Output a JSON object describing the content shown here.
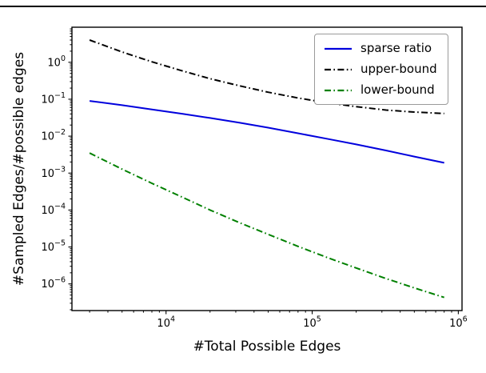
{
  "chart_data": {
    "type": "line",
    "title": "",
    "xlabel": "#Total Possible Edges",
    "ylabel": "#Sampled Edges/#possible edges",
    "x_scale": "log",
    "y_scale": "log",
    "grid": false,
    "legend_position": "upper right",
    "xlim": [
      2270,
      1060000
    ],
    "ylim": [
      1.9e-07,
      8.9
    ],
    "x_tick_exponents": [
      4,
      5,
      6
    ],
    "y_tick_exponents": [
      0,
      -1,
      -2,
      -3,
      -4,
      -5,
      -6
    ],
    "x": [
      3000,
      5000,
      8000,
      13000,
      20000,
      32000,
      50000,
      80000,
      130000,
      200000,
      320000,
      500000,
      800000
    ],
    "series": [
      {
        "name": "sparse ratio",
        "color": "#0000dd",
        "line_style": "solid",
        "values": [
          0.09,
          0.069,
          0.053,
          0.04,
          0.031,
          0.023,
          0.017,
          0.012,
          0.0083,
          0.006,
          0.0041,
          0.0028,
          0.0019
        ]
      },
      {
        "name": "upper-bound",
        "color": "#000000",
        "line_style": "dashdot",
        "values": [
          4.0,
          1.9,
          1.03,
          0.58,
          0.36,
          0.23,
          0.155,
          0.108,
          0.079,
          0.063,
          0.051,
          0.045,
          0.041
        ]
      },
      {
        "name": "lower-bound",
        "color": "#008000",
        "line_style": "dashdot",
        "values": [
          0.0035,
          0.00128,
          0.00053,
          0.00022,
          0.0001,
          4.5e-05,
          2.2e-05,
          1.04e-05,
          5e-06,
          2.7e-06,
          1.4e-06,
          7.8e-07,
          4.3e-07
        ]
      }
    ]
  }
}
